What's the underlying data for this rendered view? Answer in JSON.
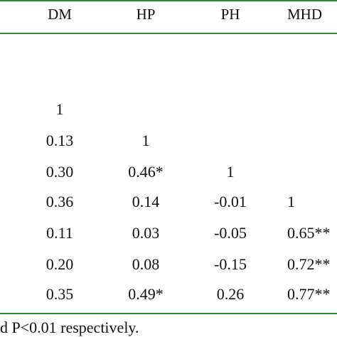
{
  "table": {
    "headers": [
      "DM",
      "HP",
      "PH",
      "MHD"
    ],
    "rows": [
      [
        "1",
        "",
        "",
        ""
      ],
      [
        "0.13",
        "1",
        "",
        ""
      ],
      [
        "0.30",
        "0.46*",
        "1",
        ""
      ],
      [
        "0.36",
        "0.14",
        "-0.01",
        "1"
      ],
      [
        "0.11",
        "0.03",
        "-0.05",
        "0.65**"
      ],
      [
        "0.20",
        "0.08",
        "-0.15",
        "0.72**"
      ],
      [
        "0.35",
        "0.49*",
        "0.26",
        "0.77**"
      ]
    ]
  },
  "footnote": "d P<0.01 respectively.",
  "colors": {
    "rule": "#2e8b2e",
    "text": "#111111"
  }
}
